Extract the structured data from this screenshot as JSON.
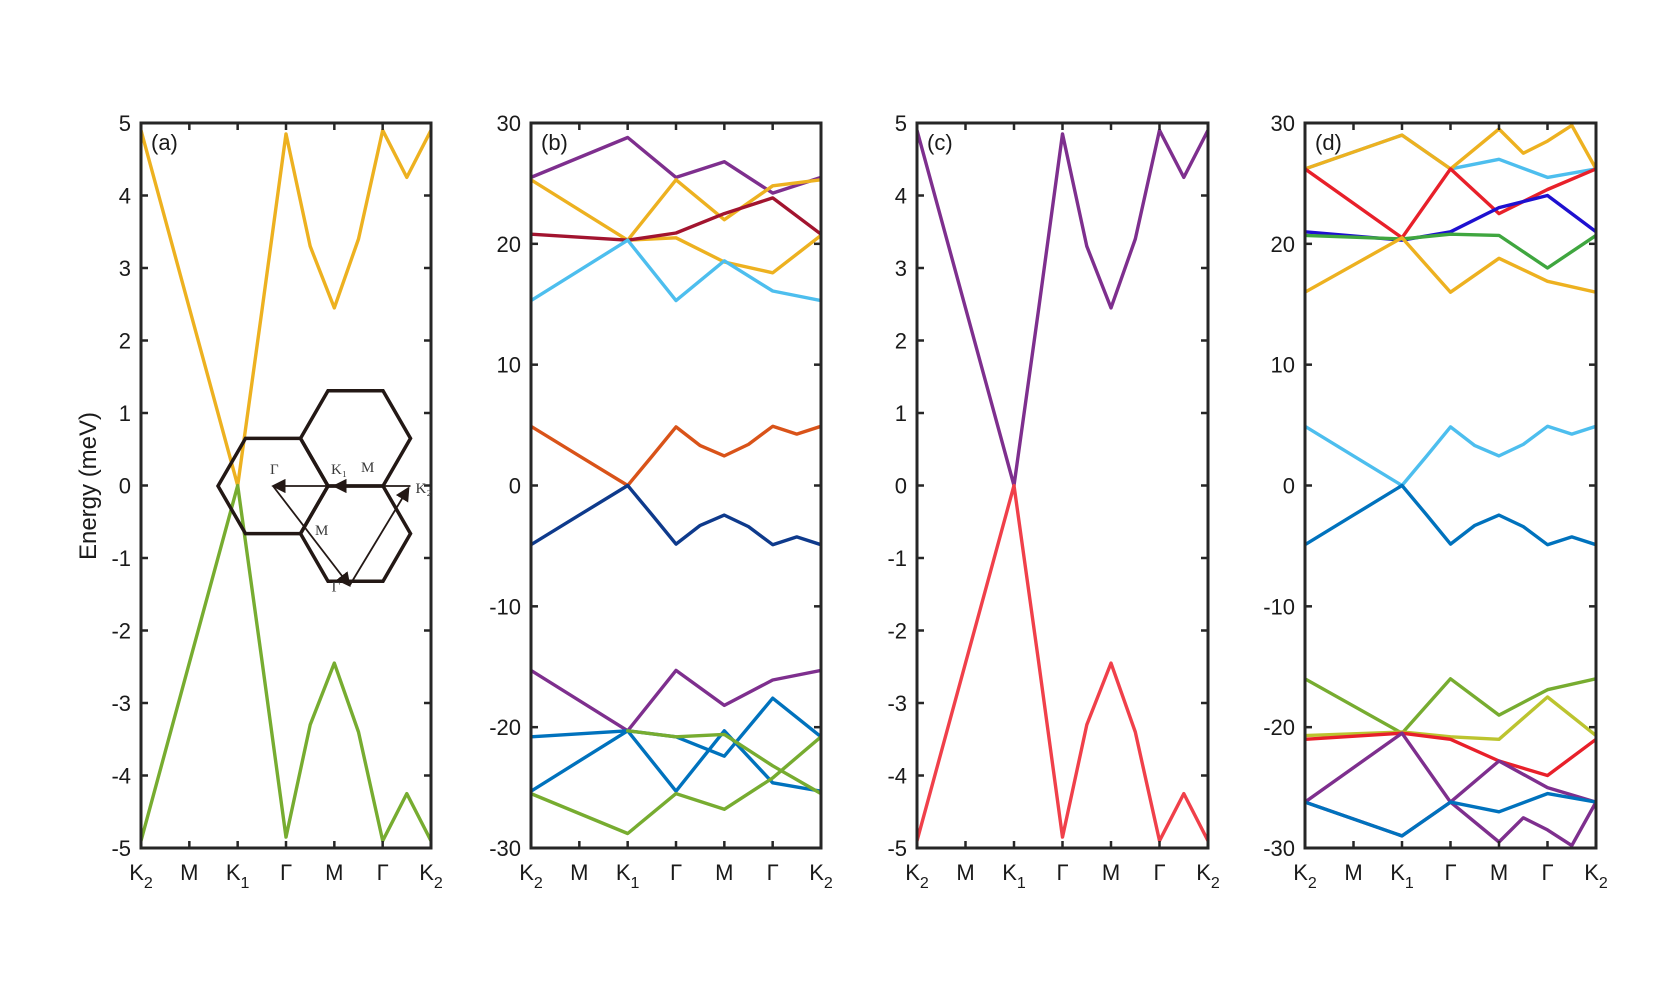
{
  "figure": {
    "ylabel": "Energy (meV)"
  },
  "colors": {
    "yellow": "#EDB120",
    "green": "#77AC30",
    "purple": "#7E2F8E",
    "darkred": "#A2142F",
    "lightblue": "#4DBEEE",
    "red": "#D95319",
    "navy": "#0E3A8C",
    "blue": "#0072BD",
    "pinkred": "#F0404A",
    "brightred": "#E8202A",
    "blue2": "#1E10D0",
    "green2": "#3FA63F",
    "olive": "#BCC42F"
  },
  "inset": {
    "labels": [
      "Γ",
      "K₁",
      "M",
      "K₂",
      "M",
      "Γ"
    ]
  },
  "chart_data": [
    {
      "panel_label": "(a)",
      "type": "line",
      "ylim": [
        -5,
        5
      ],
      "yticks": [
        "5",
        "4",
        "3",
        "2",
        "1",
        "0",
        "-1",
        "-2",
        "-3",
        "-4",
        "-5"
      ],
      "xticks": [
        {
          "label": "K",
          "sub": "2"
        },
        {
          "label": "M",
          "sub": ""
        },
        {
          "label": "K",
          "sub": "1"
        },
        {
          "label": "Γ",
          "sub": ""
        },
        {
          "label": "M",
          "sub": ""
        },
        {
          "label": "Γ",
          "sub": ""
        },
        {
          "label": "K",
          "sub": "2"
        }
      ],
      "series": [
        {
          "color": "yellow",
          "x": [
            0,
            1,
            2,
            2.5,
            3,
            3.5,
            4,
            4.5,
            5,
            5.5,
            6
          ],
          "y": [
            4.9,
            2.45,
            0,
            2.4,
            4.85,
            3.3,
            2.45,
            3.4,
            4.9,
            4.25,
            4.9
          ]
        },
        {
          "color": "green",
          "x": [
            0,
            1,
            2,
            2.5,
            3,
            3.5,
            4,
            4.5,
            5,
            5.5,
            6
          ],
          "y": [
            -4.9,
            -2.45,
            0,
            -2.4,
            -4.85,
            -3.3,
            -2.45,
            -3.4,
            -4.9,
            -4.25,
            -4.9
          ]
        }
      ]
    },
    {
      "panel_label": "(b)",
      "type": "line",
      "ylim": [
        -30,
        30
      ],
      "yticks": [
        "30",
        "20",
        "10",
        "0",
        "-10",
        "-20",
        "-30"
      ],
      "xticks": [
        {
          "label": "K",
          "sub": "2"
        },
        {
          "label": "M",
          "sub": ""
        },
        {
          "label": "K",
          "sub": "1"
        },
        {
          "label": "Γ",
          "sub": ""
        },
        {
          "label": "M",
          "sub": ""
        },
        {
          "label": "Γ",
          "sub": ""
        },
        {
          "label": "K",
          "sub": "2"
        }
      ],
      "series": [
        {
          "color": "purple",
          "x": [
            0,
            2,
            3,
            4,
            5,
            6
          ],
          "y": [
            25.5,
            28.8,
            25.5,
            26.8,
            24.2,
            25.5
          ]
        },
        {
          "color": "yellow",
          "x": [
            0,
            2,
            3,
            4,
            5,
            6
          ],
          "y": [
            25.3,
            20.3,
            25.3,
            22,
            24.8,
            25.3
          ]
        },
        {
          "color": "yellow",
          "x": [
            2,
            3,
            4,
            5,
            6
          ],
          "y": [
            20.3,
            20.5,
            18.5,
            17.6,
            20.7
          ]
        },
        {
          "color": "darkred",
          "x": [
            0,
            2,
            3,
            4,
            5,
            6
          ],
          "y": [
            20.8,
            20.3,
            20.9,
            22.5,
            23.8,
            20.8
          ]
        },
        {
          "color": "lightblue",
          "x": [
            0,
            2,
            3,
            4,
            5,
            6
          ],
          "y": [
            15.3,
            20.3,
            15.3,
            18.6,
            16.1,
            15.3
          ]
        },
        {
          "color": "red",
          "x": [
            0,
            1,
            2,
            2.5,
            3,
            3.5,
            4,
            4.5,
            5,
            5.5,
            6
          ],
          "y": [
            4.9,
            2.45,
            0,
            2.4,
            4.85,
            3.3,
            2.45,
            3.4,
            4.9,
            4.25,
            4.9
          ]
        },
        {
          "color": "navy",
          "x": [
            0,
            1,
            2,
            2.5,
            3,
            3.5,
            4,
            4.5,
            5,
            5.5,
            6
          ],
          "y": [
            -4.9,
            -2.45,
            0,
            -2.4,
            -4.85,
            -3.3,
            -2.45,
            -3.4,
            -4.9,
            -4.25,
            -4.9
          ]
        },
        {
          "color": "purple",
          "x": [
            0,
            2,
            3,
            4,
            5,
            6
          ],
          "y": [
            -15.3,
            -20.3,
            -15.3,
            -18.2,
            -16.1,
            -15.3
          ]
        },
        {
          "color": "blue",
          "x": [
            0,
            2,
            3,
            4,
            5,
            6
          ],
          "y": [
            -20.8,
            -20.3,
            -25.3,
            -20.3,
            -24.6,
            -25.3
          ]
        },
        {
          "color": "blue",
          "x": [
            0,
            2,
            3,
            4,
            5,
            6
          ],
          "y": [
            -25.3,
            -20.3,
            -20.8,
            -22.4,
            -17.6,
            -20.8
          ]
        },
        {
          "color": "green",
          "x": [
            0,
            2,
            3,
            4,
            5,
            6
          ],
          "y": [
            -25.5,
            -28.8,
            -25.5,
            -26.8,
            -24.2,
            -20.8
          ]
        },
        {
          "color": "green",
          "x": [
            2,
            3,
            4,
            5,
            6
          ],
          "y": [
            -20.3,
            -20.8,
            -20.6,
            -23.2,
            -25.5
          ]
        }
      ]
    },
    {
      "panel_label": "(c)",
      "type": "line",
      "ylim": [
        -5,
        5
      ],
      "yticks": [
        "5",
        "4",
        "3",
        "2",
        "1",
        "0",
        "-1",
        "-2",
        "-3",
        "-4",
        "-5"
      ],
      "xticks": [
        {
          "label": "K",
          "sub": "2"
        },
        {
          "label": "M",
          "sub": ""
        },
        {
          "label": "K",
          "sub": "1"
        },
        {
          "label": "Γ",
          "sub": ""
        },
        {
          "label": "M",
          "sub": ""
        },
        {
          "label": "Γ",
          "sub": ""
        },
        {
          "label": "K",
          "sub": "2"
        }
      ],
      "series": [
        {
          "color": "purple",
          "x": [
            0,
            1,
            2,
            2.5,
            3,
            3.5,
            4,
            4.5,
            5,
            5.5,
            6
          ],
          "y": [
            4.9,
            2.45,
            0,
            2.4,
            4.85,
            3.3,
            2.45,
            3.4,
            4.9,
            4.25,
            4.9
          ]
        },
        {
          "color": "pinkred",
          "x": [
            0,
            1,
            2,
            2.5,
            3,
            3.5,
            4,
            4.5,
            5,
            5.5,
            6
          ],
          "y": [
            -4.9,
            -2.45,
            0,
            -2.4,
            -4.85,
            -3.3,
            -2.45,
            -3.4,
            -4.9,
            -4.25,
            -4.9
          ]
        }
      ]
    },
    {
      "panel_label": "(d)",
      "type": "line",
      "ylim": [
        -30,
        30
      ],
      "yticks": [
        "30",
        "20",
        "10",
        "0",
        "-10",
        "-20",
        "-30"
      ],
      "xticks": [
        {
          "label": "K",
          "sub": "2"
        },
        {
          "label": "M",
          "sub": ""
        },
        {
          "label": "K",
          "sub": "1"
        },
        {
          "label": "Γ",
          "sub": ""
        },
        {
          "label": "M",
          "sub": ""
        },
        {
          "label": "Γ",
          "sub": ""
        },
        {
          "label": "K",
          "sub": "2"
        }
      ],
      "series": [
        {
          "color": "lightblue",
          "x": [
            0,
            2,
            3,
            4,
            5,
            6
          ],
          "y": [
            26.2,
            29,
            26.2,
            27,
            25.5,
            26.2
          ]
        },
        {
          "color": "yellow",
          "x": [
            0,
            2,
            3,
            4,
            4.5,
            5,
            5.5,
            6
          ],
          "y": [
            26.2,
            29,
            26.2,
            29.5,
            27.5,
            28.5,
            29.8,
            26.2
          ]
        },
        {
          "color": "brightred",
          "x": [
            0,
            2,
            3,
            4,
            5,
            6
          ],
          "y": [
            26.2,
            20.5,
            26.2,
            22.5,
            24.5,
            26.2
          ]
        },
        {
          "color": "blue2",
          "x": [
            0,
            2,
            3,
            4,
            5,
            6
          ],
          "y": [
            21,
            20.3,
            21,
            23,
            24,
            21
          ]
        },
        {
          "color": "green2",
          "x": [
            0,
            2,
            3,
            4,
            5,
            6
          ],
          "y": [
            20.7,
            20.4,
            20.8,
            20.7,
            18,
            20.7
          ]
        },
        {
          "color": "yellow",
          "x": [
            0,
            2,
            3,
            4,
            5,
            6
          ],
          "y": [
            16,
            20.5,
            16,
            18.8,
            16.9,
            16
          ]
        },
        {
          "color": "lightblue",
          "x": [
            0,
            1,
            2,
            2.5,
            3,
            3.5,
            4,
            4.5,
            5,
            5.5,
            6
          ],
          "y": [
            4.9,
            2.45,
            0,
            2.4,
            4.85,
            3.3,
            2.45,
            3.4,
            4.9,
            4.25,
            4.9
          ]
        },
        {
          "color": "blue",
          "x": [
            0,
            1,
            2,
            2.5,
            3,
            3.5,
            4,
            4.5,
            5,
            5.5,
            6
          ],
          "y": [
            -4.9,
            -2.45,
            0,
            -2.4,
            -4.85,
            -3.3,
            -2.45,
            -3.4,
            -4.9,
            -4.25,
            -4.9
          ]
        },
        {
          "color": "green",
          "x": [
            0,
            2,
            3,
            4,
            5,
            6
          ],
          "y": [
            -16,
            -20.5,
            -16,
            -19,
            -16.9,
            -16
          ]
        },
        {
          "color": "olive",
          "x": [
            0,
            2,
            3,
            4,
            5,
            6
          ],
          "y": [
            -20.7,
            -20.4,
            -20.8,
            -21,
            -17.5,
            -20.7
          ]
        },
        {
          "color": "brightred",
          "x": [
            0,
            2,
            3,
            4,
            5,
            6
          ],
          "y": [
            -21,
            -20.5,
            -21,
            -22.8,
            -24,
            -21
          ]
        },
        {
          "color": "purple",
          "x": [
            0,
            2,
            3,
            4,
            5,
            6
          ],
          "y": [
            -26.2,
            -20.5,
            -26.2,
            -22.8,
            -25,
            -26.2
          ]
        },
        {
          "color": "purple",
          "x": [
            0,
            2,
            3,
            4,
            4.5,
            5,
            5.5,
            6
          ],
          "y": [
            -26.2,
            -29,
            -26.2,
            -29.5,
            -27.5,
            -28.5,
            -29.8,
            -26.2
          ]
        },
        {
          "color": "blue",
          "x": [
            0,
            2,
            3,
            4,
            5,
            6
          ],
          "y": [
            -26.2,
            -29,
            -26.2,
            -27,
            -25.5,
            -26.2
          ]
        }
      ]
    }
  ]
}
